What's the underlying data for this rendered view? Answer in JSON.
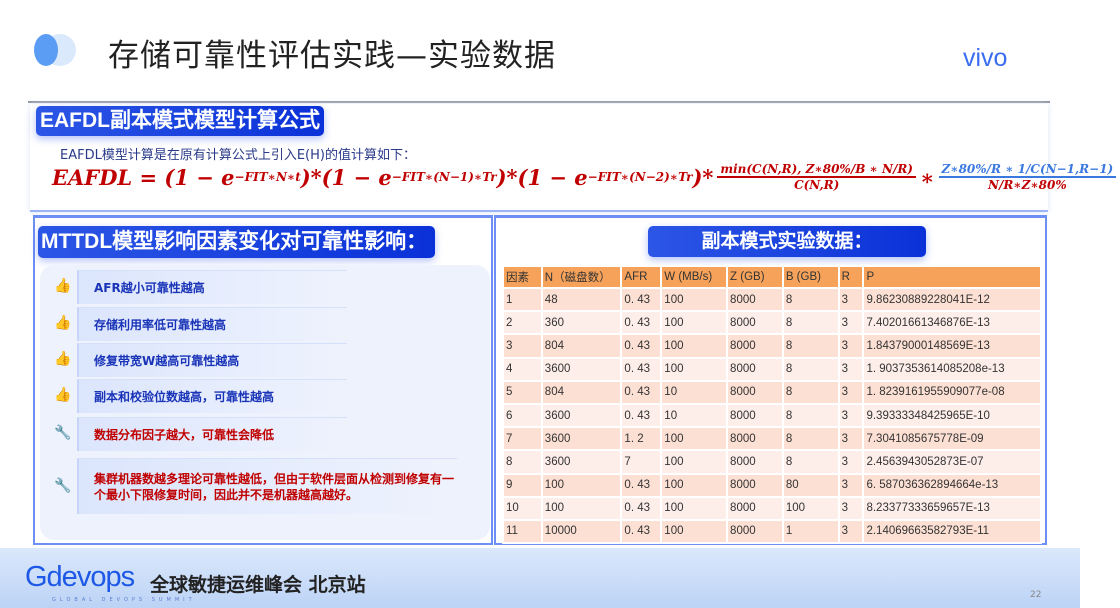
{
  "header": {
    "title": "存储可靠性评估实践—实验数据",
    "brand": "vivo"
  },
  "formula": {
    "badge": "EAFDL副本模式模型计算公式",
    "subtitle": "EAFDL模型计算是在原有计算公式上引入E(H)的值计算如下：",
    "lhs": "EAFDL = (1 − e",
    "exp1": "−FIT∗N∗t",
    "mid1": ")*(1 − e",
    "exp2": "−FIT∗(N−1)∗Tr",
    "mid2": ")*(1 − e",
    "exp3": "−FIT∗(N−2)∗Tr",
    "mid3": ")*",
    "frac1_num": "min(C(N,R), Z∗80%/B ∗ N/R)",
    "frac1_den": "C(N,R)",
    "times": "∗",
    "frac2_num": "Z∗80%/R ∗ 1/C(N−1,R−1)",
    "frac2_den": "N/R∗Z∗80%"
  },
  "factors": {
    "badge": "MTTDL模型影响因素变化对可靠性影响：",
    "items": [
      {
        "icon": "thumbs-up",
        "text": "AFR越小可靠性越高"
      },
      {
        "icon": "thumbs-up",
        "text": "存储利用率低可靠性越高"
      },
      {
        "icon": "thumbs-up",
        "text": "修复带宽W越高可靠性越高"
      },
      {
        "icon": "thumbs-up",
        "text": "副本和校验位数越高，可靠性越高"
      },
      {
        "icon": "wrench",
        "text": "数据分布因子越大，可靠性会降低"
      },
      {
        "icon": "wrench",
        "text": "集群机器数越多理论可靠性越低，但由于软件层面从检测到修复有一个最小下限修复时间，因此并不是机器越高越好。"
      }
    ]
  },
  "experiment": {
    "badge": "副本模式实验数据：",
    "columns": [
      "因素",
      "N（磁盘数）",
      "AFR",
      "W (MB/s)",
      "Z (GB)",
      "B (GB)",
      "R",
      "P"
    ],
    "rows": [
      [
        "1",
        "48",
        "0. 43",
        "100",
        "8000",
        "8",
        "3",
        "9.86230889228041E-12"
      ],
      [
        "2",
        "360",
        "0. 43",
        "100",
        "8000",
        "8",
        "3",
        "7.40201661346876E-13"
      ],
      [
        "3",
        "804",
        "0. 43",
        "100",
        "8000",
        "8",
        "3",
        "1.84379000148569E-13"
      ],
      [
        "4",
        "3600",
        "0. 43",
        "100",
        "8000",
        "8",
        "3",
        "1. 9037353614085208e-13"
      ],
      [
        "5",
        "804",
        "0. 43",
        "10",
        "8000",
        "8",
        "3",
        "1. 8239161955909077e-08"
      ],
      [
        "6",
        "3600",
        "0. 43",
        "10",
        "8000",
        "8",
        "3",
        "9.39333348425965E-10"
      ],
      [
        "7",
        "3600",
        "1. 2",
        "100",
        "8000",
        "8",
        "3",
        "7.3041085675778E-09"
      ],
      [
        "8",
        "3600",
        "7",
        "100",
        "8000",
        "8",
        "3",
        "2.4563943052873E-07"
      ],
      [
        "9",
        "100",
        "0. 43",
        "100",
        "8000",
        "80",
        "3",
        "6. 587036362894664e-13"
      ],
      [
        "10",
        "100",
        "0. 43",
        "100",
        "8000",
        "100",
        "3",
        "8.23377333659657E-13"
      ],
      [
        "11",
        "10000",
        "0. 43",
        "100",
        "8000",
        "1",
        "3",
        "2.14069663582793E-11"
      ]
    ]
  },
  "footer": {
    "logo": "Gdevops",
    "logo_sub": "GLOBAL DEVOPS SUMMIT",
    "conference": "全球敏捷运维峰会 北京站",
    "page": "22"
  },
  "colors": {
    "accent": "#1d4fe0",
    "table_header": "#f6a25a",
    "formula": "#c00000"
  }
}
